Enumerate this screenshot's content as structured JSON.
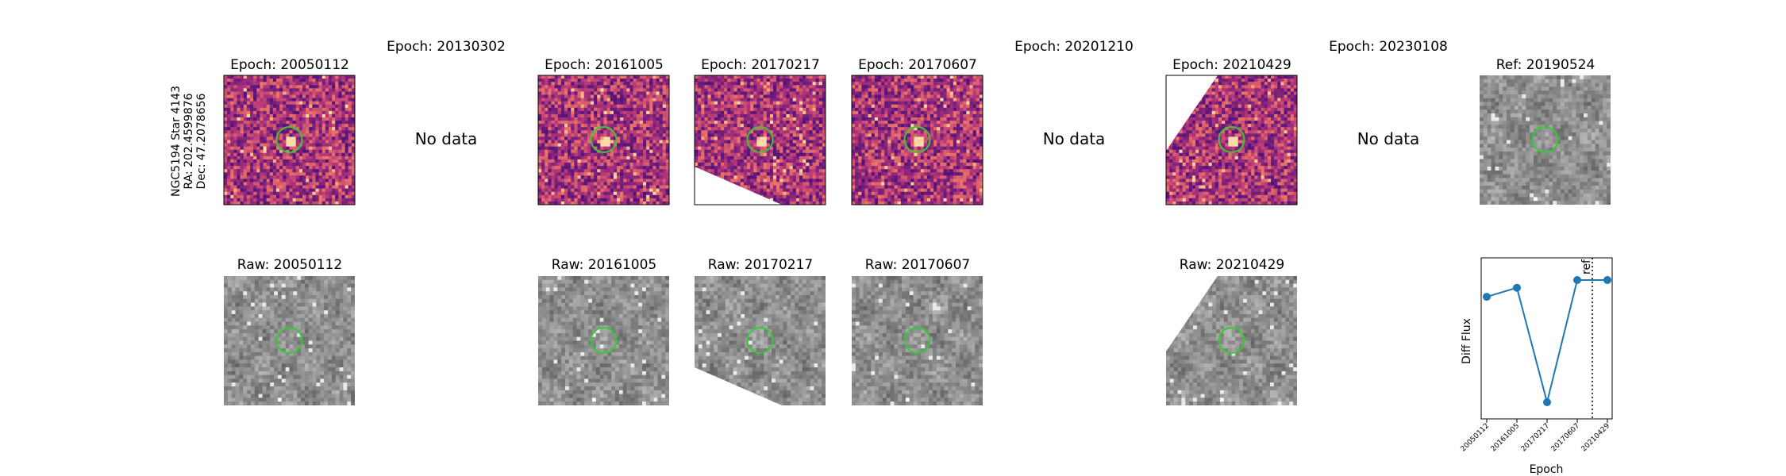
{
  "target_label": [
    "NGC5194 Star 4143",
    "RA: 202.4599876",
    "Dec: 47.2078656"
  ],
  "no_data_text": "No data",
  "diff_panels": [
    {
      "title": "Epoch: 20050112",
      "has_data": true,
      "cmap": "magma",
      "mask": "none"
    },
    {
      "title": "Epoch: 20130302",
      "has_data": false
    },
    {
      "title": "Epoch: 20161005",
      "has_data": true,
      "cmap": "magma",
      "mask": "none"
    },
    {
      "title": "Epoch: 20170217",
      "has_data": true,
      "cmap": "magma",
      "mask": "bottom-left"
    },
    {
      "title": "Epoch: 20170607",
      "has_data": true,
      "cmap": "magma",
      "mask": "none"
    },
    {
      "title": "Epoch: 20201210",
      "has_data": false
    },
    {
      "title": "Epoch: 20210429",
      "has_data": true,
      "cmap": "magma",
      "mask": "top-left"
    },
    {
      "title": "Epoch: 20230108",
      "has_data": false
    },
    {
      "title": "Ref: 20190524",
      "has_data": true,
      "cmap": "gray",
      "mask": "none"
    }
  ],
  "raw_panels": [
    {
      "title": "Raw: 20050112",
      "slot": 0,
      "mask": "none"
    },
    {
      "title": "Raw: 20161005",
      "slot": 2,
      "mask": "none"
    },
    {
      "title": "Raw: 20170217",
      "slot": 3,
      "mask": "bottom-left"
    },
    {
      "title": "Raw: 20170607",
      "slot": 4,
      "mask": "none"
    },
    {
      "title": "Raw: 20210429",
      "slot": 6,
      "mask": "top-left"
    }
  ],
  "colors": {
    "circle": "#33cc33",
    "line": "#1f77b4",
    "ref_line": "#000000"
  },
  "chart_data": {
    "type": "line",
    "x": [
      "20050112",
      "20161005",
      "20170217",
      "20170607",
      "20210429"
    ],
    "values": [
      0.82,
      0.89,
      0.0,
      0.95,
      0.95
    ],
    "xlabel": "Epoch",
    "ylabel": "Diff Flux",
    "ref_marker": {
      "label": "ref",
      "between": [
        "20170607",
        "20210429"
      ],
      "position_fraction": 0.5
    },
    "grid": false,
    "yticks_shown": false
  }
}
